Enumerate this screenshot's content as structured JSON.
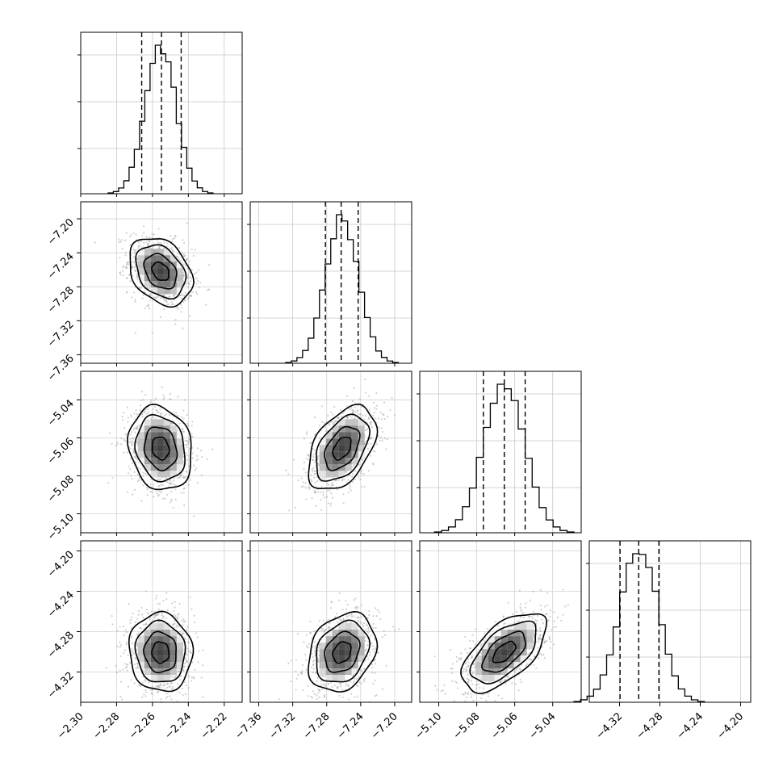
{
  "chart_data": {
    "type": "corner",
    "grid": true,
    "params": [
      {
        "range": [
          -2.3,
          -2.21
        ],
        "ticks": [
          "-2.30",
          "-2.28",
          "-2.26",
          "-2.24",
          "-2.22"
        ],
        "quantiles": [
          -2.266,
          -2.255,
          -2.244
        ],
        "mean": -2.2555,
        "sd": 0.0086
      },
      {
        "range": [
          -7.37,
          -7.18
        ],
        "ticks": [
          "-7.36",
          "-7.32",
          "-7.28",
          "-7.24",
          "-7.20"
        ],
        "quantiles": [
          -7.2815,
          -7.263,
          -7.243
        ],
        "mean": -7.262,
        "sd": 0.0195
      },
      {
        "range": [
          -5.11,
          -5.025
        ],
        "ticks": [
          "-5.10",
          "-5.08",
          "-5.06",
          "-5.04"
        ],
        "quantiles": [
          -5.0765,
          -5.0655,
          -5.0545
        ],
        "mean": -5.0655,
        "sd": 0.0108
      },
      {
        "range": [
          -4.35,
          -4.19
        ],
        "ticks": [
          "-4.32",
          "-4.28",
          "-4.24",
          "-4.20"
        ],
        "quantiles": [
          -4.3195,
          -4.301,
          -4.281
        ],
        "mean": -4.3005,
        "sd": 0.019
      }
    ],
    "correlations": [
      {
        "pair": [
          0,
          1
        ],
        "rho": -0.3
      },
      {
        "pair": [
          0,
          2
        ],
        "rho": -0.15
      },
      {
        "pair": [
          0,
          3
        ],
        "rho": -0.05
      },
      {
        "pair": [
          1,
          2
        ],
        "rho": 0.45
      },
      {
        "pair": [
          1,
          3
        ],
        "rho": 0.25
      },
      {
        "pair": [
          2,
          3
        ],
        "rho": 0.6
      }
    ],
    "x_tick_labels": [
      [
        "-2.30",
        "-2.28",
        "-2.26",
        "-2.24",
        "-2.22"
      ],
      [
        "-7.36",
        "-7.32",
        "-7.28",
        "-7.24",
        "-7.20"
      ],
      [
        "-5.10",
        "-5.08",
        "-5.06",
        "-5.04"
      ],
      [
        "-4.32",
        "-4.28",
        "-4.24",
        "-4.20"
      ]
    ],
    "y_tick_labels": [
      [
        "-7.36",
        "-7.32",
        "-7.28",
        "-7.24",
        "-7.20"
      ],
      [
        "-5.10",
        "-5.08",
        "-5.06",
        "-5.04"
      ],
      [
        "-4.32",
        "-4.28",
        "-4.24",
        "-4.20"
      ]
    ]
  }
}
